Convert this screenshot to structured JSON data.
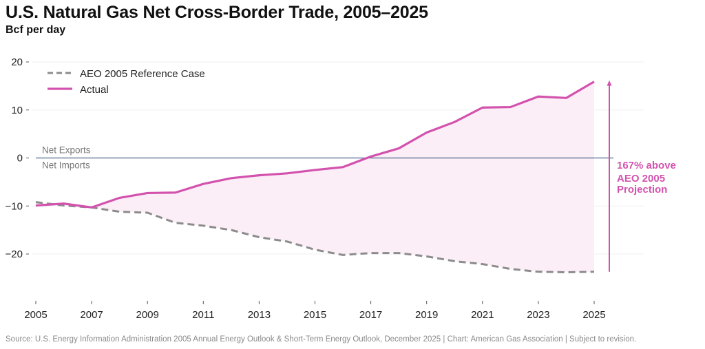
{
  "chart_data": {
    "type": "line",
    "title": "U.S. Natural Gas Net Cross-Border Trade, 2005–2025",
    "subtitle": "Bcf per day",
    "xlabel": "",
    "ylabel": "Bcf per day",
    "x": [
      2005,
      2006,
      2007,
      2008,
      2009,
      2010,
      2011,
      2012,
      2013,
      2014,
      2015,
      2016,
      2017,
      2018,
      2019,
      2020,
      2021,
      2022,
      2023,
      2024,
      2025
    ],
    "x_ticks": [
      "2005",
      "2007",
      "2009",
      "2011",
      "2013",
      "2015",
      "2017",
      "2019",
      "2021",
      "2023",
      "2025"
    ],
    "y_ticks": [
      "20",
      "10",
      "0",
      "−10",
      "−20"
    ],
    "y_tick_values": [
      20,
      10,
      0,
      -10,
      -20
    ],
    "xlim": [
      2005,
      2026.8
    ],
    "ylim": [
      -29,
      23
    ],
    "grid": "horizontal",
    "legend_position": "top-left",
    "series": [
      {
        "name": "AEO 2005 Reference Case",
        "style": "dashed",
        "color": "#8c8c8c",
        "values": [
          -9.2,
          -9.9,
          -10.3,
          -11.2,
          -11.4,
          -13.5,
          -14.1,
          -15.0,
          -16.5,
          -17.4,
          -19.1,
          -20.2,
          -19.8,
          -19.8,
          -20.5,
          -21.5,
          -22.1,
          -23.1,
          -23.7,
          -23.8,
          -23.7
        ]
      },
      {
        "name": "Actual",
        "style": "solid",
        "color": "#d352ae",
        "values": [
          -9.9,
          -9.5,
          -10.3,
          -8.3,
          -7.3,
          -7.2,
          -5.4,
          -4.2,
          -3.6,
          -3.2,
          -2.5,
          -1.9,
          0.3,
          2.0,
          5.3,
          7.5,
          10.5,
          10.6,
          12.8,
          12.5,
          15.9
        ]
      }
    ],
    "fill_between": {
      "color": "#fbeef6",
      "between": [
        "AEO 2005 Reference Case",
        "Actual"
      ]
    },
    "zero_line": {
      "color": "#4a6489",
      "label_above": "Net Exports",
      "label_below": "Net Imports"
    },
    "annotation": {
      "lines": [
        "167% above",
        "AEO 2005",
        "Projection"
      ],
      "color": "#d352ae",
      "arrow_from": -23.7,
      "arrow_to": 15.9
    }
  },
  "source": "Source: U.S. Energy Information Administration 2005 Annual Energy Outlook & Short-Term Energy Outlook, December 2025 | Chart: American Gas Association | Subject to revision."
}
